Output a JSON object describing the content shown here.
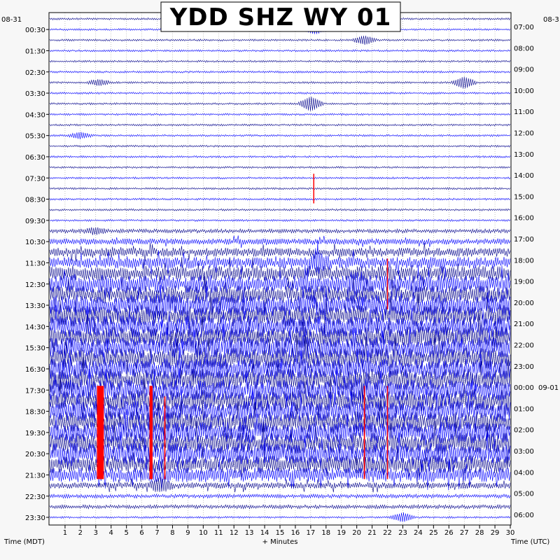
{
  "chart_data": {
    "type": "helicorder",
    "title": "YDD SHZ WY 01",
    "date_left": "08-31",
    "date_right": "08-3",
    "date_right_rollover": "09-01",
    "left_axis_label": "Time (MDT)",
    "right_axis_label": "Time (UTC)",
    "x_axis_label": "+ Minutes",
    "x_ticks": [
      1,
      2,
      3,
      4,
      5,
      6,
      7,
      8,
      9,
      10,
      11,
      12,
      13,
      14,
      15,
      16,
      17,
      18,
      19,
      20,
      21,
      22,
      23,
      24,
      25,
      26,
      27,
      28,
      29,
      30
    ],
    "xlim": [
      0,
      30
    ],
    "rows_per_hour": 2,
    "row_count": 48,
    "left_time_labels": [
      "00:30",
      "01:30",
      "02:30",
      "03:30",
      "04:30",
      "05:30",
      "06:30",
      "07:30",
      "08:30",
      "09:30",
      "10:30",
      "11:30",
      "12:30",
      "13:30",
      "14:30",
      "15:30",
      "16:30",
      "17:30",
      "18:30",
      "19:30",
      "20:30",
      "21:30",
      "22:30",
      "23:30"
    ],
    "right_time_labels": [
      "07:00",
      "08:00",
      "09:00",
      "10:00",
      "11:00",
      "12:00",
      "13:00",
      "14:00",
      "15:00",
      "16:00",
      "17:00",
      "18:00",
      "19:00",
      "20:00",
      "21:00",
      "22:00",
      "23:00",
      "00:00",
      "01:00",
      "02:00",
      "03:00",
      "04:00",
      "05:00",
      "06:00"
    ],
    "trace_colors": [
      "#00008b",
      "#0000ff"
    ],
    "clip_color": "#ff0000",
    "frame_color": "#000000",
    "grid": "dotted vertical every minute",
    "activity_by_row": [
      1,
      1,
      1,
      1,
      1,
      1,
      1,
      1,
      1,
      1,
      1,
      1,
      1,
      1,
      1,
      1,
      1,
      1,
      1,
      1,
      2,
      3,
      4,
      5,
      6,
      7,
      7,
      8,
      8,
      8,
      8,
      8,
      8,
      8,
      8,
      8,
      8,
      8,
      8,
      8,
      8,
      8,
      7,
      6,
      3,
      2,
      2,
      1
    ],
    "events": [
      {
        "row": 1,
        "minute": 17.3,
        "amp": 3
      },
      {
        "row": 2,
        "minute": 20.5,
        "amp": 3
      },
      {
        "row": 6,
        "minute": 3.2,
        "amp": 2
      },
      {
        "row": 6,
        "minute": 27.0,
        "amp": 4
      },
      {
        "row": 8,
        "minute": 17.0,
        "amp": 5
      },
      {
        "row": 11,
        "minute": 2.0,
        "amp": 2
      },
      {
        "row": 20,
        "minute": 3.0,
        "amp": 2
      },
      {
        "row": 23,
        "minute": 17.5,
        "amp": 4
      },
      {
        "row": 25,
        "minute": 20.0,
        "amp": 4
      },
      {
        "row": 27,
        "minute": 7.0,
        "amp": 4
      },
      {
        "row": 31,
        "minute": 16.5,
        "amp": 3
      },
      {
        "row": 35,
        "minute": 20.0,
        "amp": 3
      },
      {
        "row": 44,
        "minute": 7.2,
        "amp": 4
      },
      {
        "row": 47,
        "minute": 23.0,
        "amp": 3
      }
    ],
    "clip_marks": [
      {
        "minute": 3.3,
        "row_start": 35,
        "row_end": 43,
        "width_minutes": 0.45
      },
      {
        "minute": 6.6,
        "row_start": 35,
        "row_end": 43,
        "width_minutes": 0.2
      },
      {
        "minute": 7.5,
        "row_start": 36,
        "row_end": 43,
        "width_minutes": 0.08
      },
      {
        "minute": 17.2,
        "row_start": 15,
        "row_end": 17,
        "width_minutes": 0.06
      },
      {
        "minute": 22.0,
        "row_start": 23,
        "row_end": 27,
        "width_minutes": 0.06
      },
      {
        "minute": 20.5,
        "row_start": 35,
        "row_end": 43,
        "width_minutes": 0.08
      },
      {
        "minute": 22.0,
        "row_start": 35,
        "row_end": 43,
        "width_minutes": 0.06
      }
    ]
  }
}
